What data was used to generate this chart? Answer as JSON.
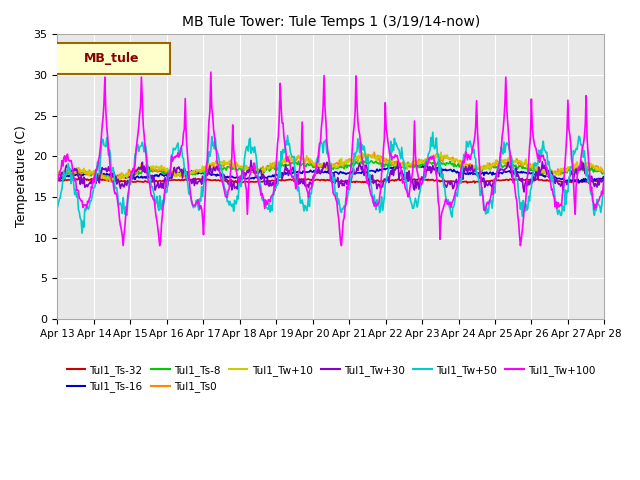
{
  "title": "MB Tule Tower: Tule Temps 1 (3/19/14-now)",
  "ylabel": "Temperature (C)",
  "xlim": [
    0,
    15
  ],
  "ylim": [
    0,
    35
  ],
  "yticks": [
    0,
    5,
    10,
    15,
    20,
    25,
    30,
    35
  ],
  "xtick_labels": [
    "Apr 13",
    "Apr 14",
    "Apr 15",
    "Apr 16",
    "Apr 17",
    "Apr 18",
    "Apr 19",
    "Apr 20",
    "Apr 21",
    "Apr 22",
    "Apr 23",
    "Apr 24",
    "Apr 25",
    "Apr 26",
    "Apr 27",
    "Apr 28"
  ],
  "fig_facecolor": "#ffffff",
  "axes_bg": "#e8e8e8",
  "legend_box_label": "MB_tule",
  "legend_box_facecolor": "#ffffcc",
  "legend_box_edgecolor": "#996600",
  "legend_box_textcolor": "#880000",
  "series": [
    {
      "label": "Tul1_Ts-32",
      "color": "#cc0000",
      "lw": 1.2
    },
    {
      "label": "Tul1_Ts-16",
      "color": "#0000cc",
      "lw": 1.2
    },
    {
      "label": "Tul1_Ts-8",
      "color": "#00cc00",
      "lw": 1.2
    },
    {
      "label": "Tul1_Ts0",
      "color": "#ff8800",
      "lw": 1.2
    },
    {
      "label": "Tul1_Tw+10",
      "color": "#cccc00",
      "lw": 1.2
    },
    {
      "label": "Tul1_Tw+30",
      "color": "#8800cc",
      "lw": 1.2
    },
    {
      "label": "Tul1_Tw+50",
      "color": "#00cccc",
      "lw": 1.2
    },
    {
      "label": "Tul1_Tw+100",
      "color": "#ff00ff",
      "lw": 1.2
    }
  ]
}
